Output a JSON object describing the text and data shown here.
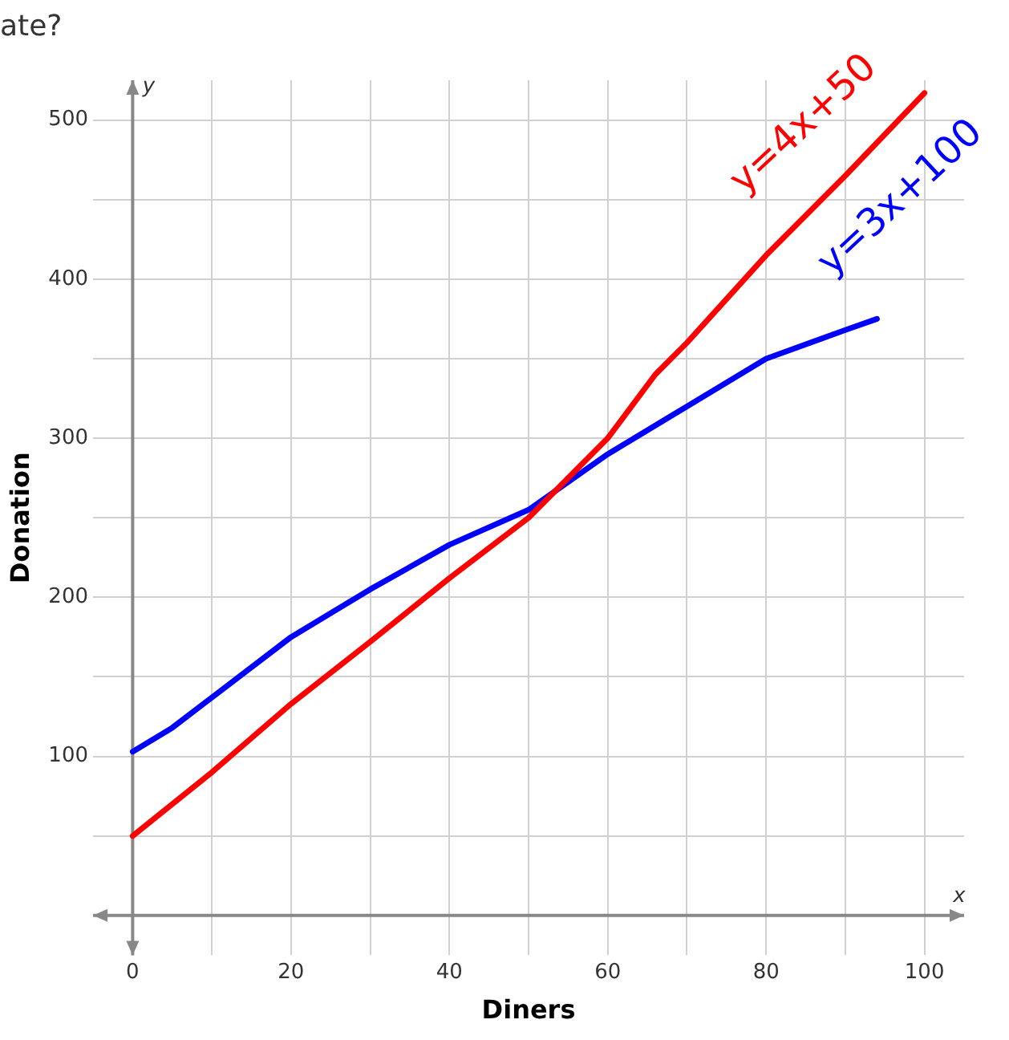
{
  "chart_data": {
    "type": "line",
    "title": "ate?",
    "xlabel": "Diners",
    "ylabel": "Donation",
    "xlim": [
      -5,
      105
    ],
    "ylim": [
      -25,
      525
    ],
    "xticks": [
      0,
      {
        "value": 10,
        "label": null
      },
      20,
      {
        "value": 30,
        "label": null
      },
      40,
      {
        "value": 50,
        "label": null
      },
      60,
      {
        "value": 70,
        "label": null
      },
      80,
      {
        "value": 90,
        "label": null
      },
      100
    ],
    "yticks": [
      {
        "value": 0,
        "label": null
      },
      {
        "value": 50,
        "label": null
      },
      100,
      {
        "value": 150,
        "label": null
      },
      200,
      {
        "value": 250,
        "label": null
      },
      300,
      {
        "value": 350,
        "label": null
      },
      400,
      {
        "value": 450,
        "label": null
      },
      500
    ],
    "grid": true,
    "legend": false,
    "marker": "none",
    "line_style": "solid",
    "series": [
      {
        "color": "#ff0000",
        "x": [
          0,
          10,
          20,
          30,
          40,
          50,
          60,
          66,
          70,
          80,
          90,
          100
        ],
        "values": [
          50,
          90,
          133,
          172,
          212,
          250,
          300,
          340,
          360,
          415,
          465,
          517
        ]
      },
      {
        "color": "#0000ff",
        "x": [
          0,
          5,
          10,
          20,
          30,
          40,
          50,
          60,
          70,
          80,
          90,
          94
        ],
        "values": [
          103,
          118,
          137,
          175,
          205,
          233,
          255,
          290,
          320,
          350,
          368,
          375
        ]
      }
    ],
    "annotations": [
      "y=4x+50",
      "y=3x+100",
      "y",
      "x"
    ]
  }
}
